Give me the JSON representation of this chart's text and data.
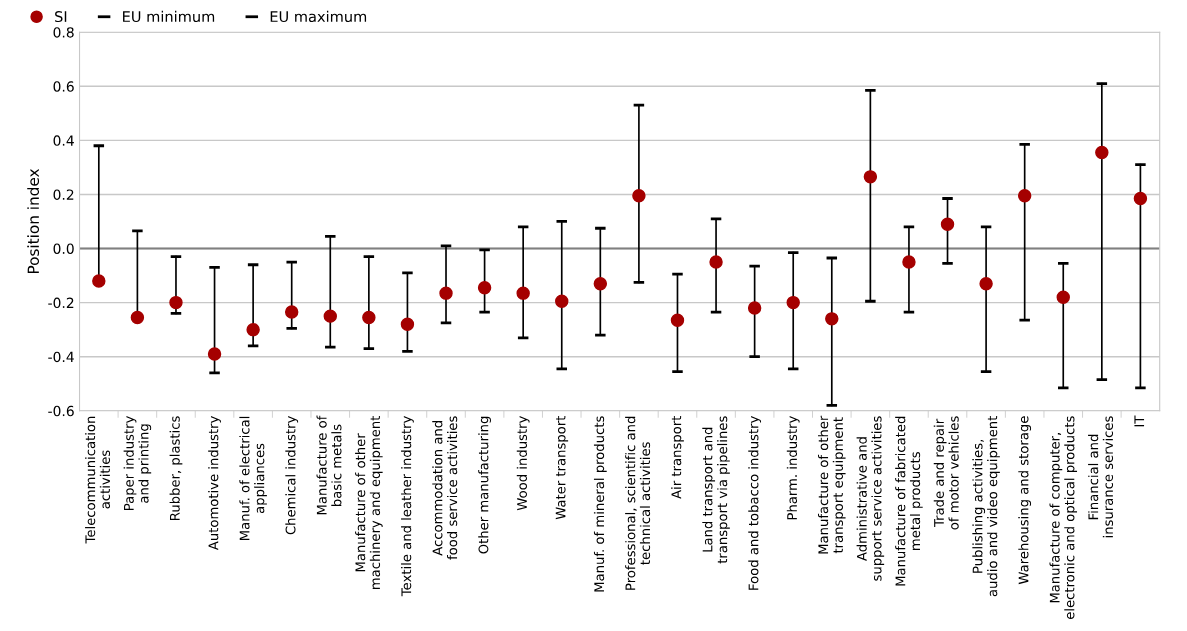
{
  "chart_data": {
    "type": "scatter",
    "ylabel": "Position index",
    "categories": [
      "Telecommunication\nactivities",
      "Paper industry\nand printing",
      "Rubber, plastics",
      "Automotive industry",
      "Manuf. of electrical\nappliances",
      "Chemical industry",
      "Manufacture of\nbasic metals",
      "Manufacture of other\nmachinery and equipment",
      "Textile and leather industry",
      "Accommodation and\nfood service activities",
      "Other manufacturing",
      "Wood industry",
      "Water transport",
      "Manuf. of mineral products",
      "Professional, scientific and\ntechnical activities",
      "Air transport",
      "Land transport and\ntransport via pipelines",
      "Food and tobacco industry",
      "Pharm. industry",
      "Manufacture of other\ntransport equipment",
      "Administrative and\nsupport service activities",
      "Manufacture of fabricated\nmetal products",
      "Trade and repair\nof motor vehicles",
      "Publishing activities,\naudio and video equipment",
      "Warehousing and storage",
      "Manufacture of computer,\nelectronic and optical products",
      "Financial and\ninsurance services",
      "IT"
    ],
    "series": [
      {
        "name": "SI",
        "color": "#a50000",
        "marker": "circle",
        "values": [
          -0.12,
          -0.255,
          -0.2,
          -0.39,
          -0.3,
          -0.235,
          -0.25,
          -0.255,
          -0.28,
          -0.165,
          -0.145,
          -0.165,
          -0.195,
          -0.13,
          0.195,
          -0.265,
          -0.05,
          -0.22,
          -0.2,
          -0.26,
          0.265,
          -0.05,
          0.09,
          -0.13,
          0.195,
          -0.18,
          0.355,
          0.185
        ],
        "errors": [
          [
            -0.12,
            0.38
          ],
          [
            -0.255,
            0.065
          ],
          [
            -0.24,
            -0.03
          ],
          [
            -0.46,
            -0.07
          ],
          [
            -0.36,
            -0.06
          ],
          [
            -0.295,
            -0.05
          ],
          [
            -0.365,
            0.045
          ],
          [
            -0.37,
            -0.03
          ],
          [
            -0.38,
            -0.09
          ],
          [
            -0.275,
            0.01
          ],
          [
            -0.235,
            -0.005
          ],
          [
            -0.33,
            0.08
          ],
          [
            -0.445,
            0.1
          ],
          [
            -0.32,
            0.075
          ],
          [
            -0.125,
            0.53
          ],
          [
            -0.455,
            -0.095
          ],
          [
            -0.235,
            0.11
          ],
          [
            -0.4,
            -0.065
          ],
          [
            -0.445,
            -0.015
          ],
          [
            -0.58,
            -0.035
          ],
          [
            -0.195,
            0.585
          ],
          [
            -0.235,
            0.08
          ],
          [
            -0.055,
            0.185
          ],
          [
            -0.455,
            0.08
          ],
          [
            -0.265,
            0.385
          ],
          [
            -0.515,
            -0.055
          ],
          [
            -0.485,
            0.61
          ],
          [
            -0.515,
            0.31
          ]
        ]
      }
    ],
    "annotations": [
      "EU minimum",
      "EU maximum"
    ],
    "ylim": [
      -0.6,
      0.8
    ],
    "yticks": [
      {
        "value": -0.6,
        "label": "-0.6"
      },
      {
        "value": -0.4,
        "label": "-0.4"
      },
      {
        "value": -0.2,
        "label": "-0.2"
      },
      {
        "value": 0,
        "label": "0.0"
      },
      {
        "value": 0.2,
        "label": "0.2"
      },
      {
        "value": 0.4,
        "label": "0.4"
      },
      {
        "value": 0.6,
        "label": "0.6"
      },
      {
        "value": 0.8,
        "label": "0.8"
      }
    ],
    "ref_lines": [
      {
        "axis": "y",
        "value": 0,
        "color": "#808080"
      }
    ],
    "grid": "y",
    "legend": "top left"
  }
}
